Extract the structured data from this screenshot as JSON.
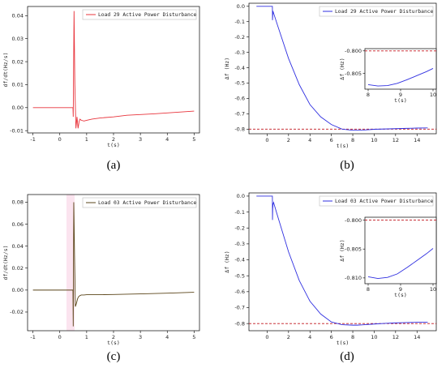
{
  "colors": {
    "red": "#e8343c",
    "blue": "#2f2fe0",
    "brown": "#5a4418",
    "refline": "#c0141c",
    "pink": "#fbe4ef"
  },
  "chart_data": [
    {
      "id": "a",
      "caption": "(a)",
      "type": "line",
      "xlabel": "t(s)",
      "ylabel": "df/dt(Hz/s)",
      "xlim": [
        -1.2,
        5.2
      ],
      "ylim": [
        -0.011,
        0.044
      ],
      "xticks": [
        -1,
        0,
        1,
        2,
        3,
        4,
        5
      ],
      "yticks": [
        -0.01,
        0.0,
        0.01,
        0.02,
        0.03,
        0.04
      ],
      "ytick_labels": [
        "-0.01",
        "0.00",
        "0.01",
        "0.02",
        "0.03",
        "0.04"
      ],
      "legend_position": "top-right",
      "series": [
        {
          "name": "Load 29 Active Power Disturbance",
          "color": "#e8343c",
          "x": [
            -1,
            0.49,
            0.5,
            0.53,
            0.56,
            0.6,
            0.64,
            0.68,
            0.72,
            0.75,
            0.8,
            0.9,
            1.0,
            1.2,
            1.5,
            2.0,
            2.5,
            3.0,
            3.5,
            4.0,
            4.5,
            5.0
          ],
          "y": [
            0,
            0,
            -0.004,
            0.042,
            0.01,
            -0.009,
            -0.004,
            -0.009,
            -0.006,
            -0.005,
            -0.0055,
            -0.0058,
            -0.0055,
            -0.005,
            -0.0045,
            -0.004,
            -0.0033,
            -0.003,
            -0.0027,
            -0.0023,
            -0.0019,
            -0.0015
          ]
        }
      ]
    },
    {
      "id": "b",
      "caption": "(b)",
      "type": "line",
      "xlabel": "t(s)",
      "ylabel": "Δf (Hz)",
      "xlim": [
        -1.7,
        15.8
      ],
      "ylim": [
        -0.83,
        0.02
      ],
      "xticks": [
        0,
        2,
        4,
        6,
        8,
        10,
        12,
        14
      ],
      "yticks": [
        0.0,
        -0.1,
        -0.2,
        -0.3,
        -0.4,
        -0.5,
        -0.6,
        -0.7,
        -0.8
      ],
      "ytick_labels": [
        "0.0",
        "-0.1",
        "-0.2",
        "-0.3",
        "-0.4",
        "-0.5",
        "-0.6",
        "-0.7",
        "-0.8"
      ],
      "legend_position": "top-right",
      "reference_y": -0.8,
      "series": [
        {
          "name": "Load 29 Active Power Disturbance",
          "color": "#2f2fe0",
          "x": [
            -1,
            0.49,
            0.5,
            0.52,
            0.54,
            0.56,
            1,
            2,
            3,
            4,
            5,
            6,
            7,
            8,
            8.5,
            9,
            10,
            11,
            12,
            13,
            14,
            15
          ],
          "y": [
            0,
            0,
            -0.09,
            -0.06,
            -0.04,
            -0.035,
            -0.13,
            -0.34,
            -0.51,
            -0.64,
            -0.72,
            -0.77,
            -0.8,
            -0.807,
            -0.807,
            -0.806,
            -0.801,
            -0.799,
            -0.797,
            -0.795,
            -0.793,
            -0.792
          ]
        }
      ],
      "inset": {
        "xlabel": "t(s)",
        "ylabel": "Δf (Hz)",
        "xlim": [
          7.9,
          10.1
        ],
        "ylim": [
          -0.8085,
          -0.7995
        ],
        "xticks": [
          8,
          9,
          10
        ],
        "yticks": [
          -0.8,
          -0.805
        ],
        "ytick_labels": [
          "-0.800",
          "-0.805"
        ],
        "reference_y": -0.8,
        "x": [
          8,
          8.3,
          8.6,
          8.9,
          9.2,
          9.5,
          9.8,
          10
        ],
        "y": [
          -0.8075,
          -0.8078,
          -0.8077,
          -0.8072,
          -0.8064,
          -0.8055,
          -0.8046,
          -0.8039
        ]
      }
    },
    {
      "id": "c",
      "caption": "(c)",
      "type": "line",
      "xlabel": "t(s)",
      "ylabel": "df/dt(Hz/s)",
      "xlim": [
        -1.2,
        5.2
      ],
      "ylim": [
        -0.037,
        0.087
      ],
      "xticks": [
        -1,
        0,
        1,
        2,
        3,
        4,
        5
      ],
      "yticks": [
        -0.02,
        0.0,
        0.02,
        0.04,
        0.06,
        0.08
      ],
      "ytick_labels": [
        "-0.02",
        "0.00",
        "0.02",
        "0.04",
        "0.06",
        "0.08"
      ],
      "legend_position": "top-right",
      "series": [
        {
          "name": "Load 03 Active Power Disturbance",
          "color": "#5a4418",
          "x": [
            -1,
            0.49,
            0.5,
            0.52,
            0.55,
            0.58,
            0.62,
            0.66,
            0.7,
            0.75,
            0.8,
            0.9,
            1.0,
            1.5,
            2.0,
            3.0,
            4.0,
            5.0
          ],
          "y": [
            0,
            0,
            -0.033,
            0.08,
            0.03,
            -0.015,
            -0.012,
            -0.008,
            -0.006,
            -0.005,
            -0.0045,
            -0.0045,
            -0.0042,
            -0.0042,
            -0.004,
            -0.0035,
            -0.0028,
            -0.002
          ]
        }
      ]
    },
    {
      "id": "d",
      "caption": "(d)",
      "type": "line",
      "xlabel": "t(s)",
      "ylabel": "Δf (Hz)",
      "xlim": [
        -1.7,
        15.8
      ],
      "ylim": [
        -0.845,
        0.02
      ],
      "xticks": [
        0,
        2,
        4,
        6,
        8,
        10,
        12,
        14
      ],
      "yticks": [
        0.0,
        -0.1,
        -0.2,
        -0.3,
        -0.4,
        -0.5,
        -0.6,
        -0.7,
        -0.8
      ],
      "ytick_labels": [
        "0.0",
        "-0.1",
        "-0.2",
        "-0.3",
        "-0.4",
        "-0.5",
        "-0.6",
        "-0.7",
        "-0.8"
      ],
      "legend_position": "top-right",
      "reference_y": -0.8,
      "series": [
        {
          "name": "Load 03 Active Power Disturbance",
          "color": "#2f2fe0",
          "x": [
            -1,
            0.49,
            0.5,
            0.52,
            0.55,
            0.6,
            1,
            2,
            3,
            4,
            5,
            6,
            7,
            8,
            8.4,
            9,
            10,
            11,
            12,
            13,
            14,
            15
          ],
          "y": [
            0,
            0,
            -0.15,
            -0.08,
            -0.05,
            -0.04,
            -0.13,
            -0.35,
            -0.53,
            -0.66,
            -0.74,
            -0.79,
            -0.807,
            -0.81,
            -0.81,
            -0.808,
            -0.803,
            -0.799,
            -0.796,
            -0.794,
            -0.792,
            -0.791
          ]
        }
      ],
      "inset": {
        "xlabel": "t(s)",
        "ylabel": "Δf (Hz)",
        "xlim": [
          7.9,
          10.1
        ],
        "ylim": [
          -0.811,
          -0.7995
        ],
        "xticks": [
          8,
          9,
          10
        ],
        "yticks": [
          -0.8,
          -0.805,
          -0.81
        ],
        "ytick_labels": [
          "-0.800",
          "-0.805",
          "-0.810"
        ],
        "reference_y": -0.8,
        "x": [
          8,
          8.3,
          8.6,
          8.9,
          9.2,
          9.5,
          9.8,
          10
        ],
        "y": [
          -0.8098,
          -0.8101,
          -0.8099,
          -0.8093,
          -0.8082,
          -0.807,
          -0.8058,
          -0.8049
        ]
      }
    }
  ]
}
